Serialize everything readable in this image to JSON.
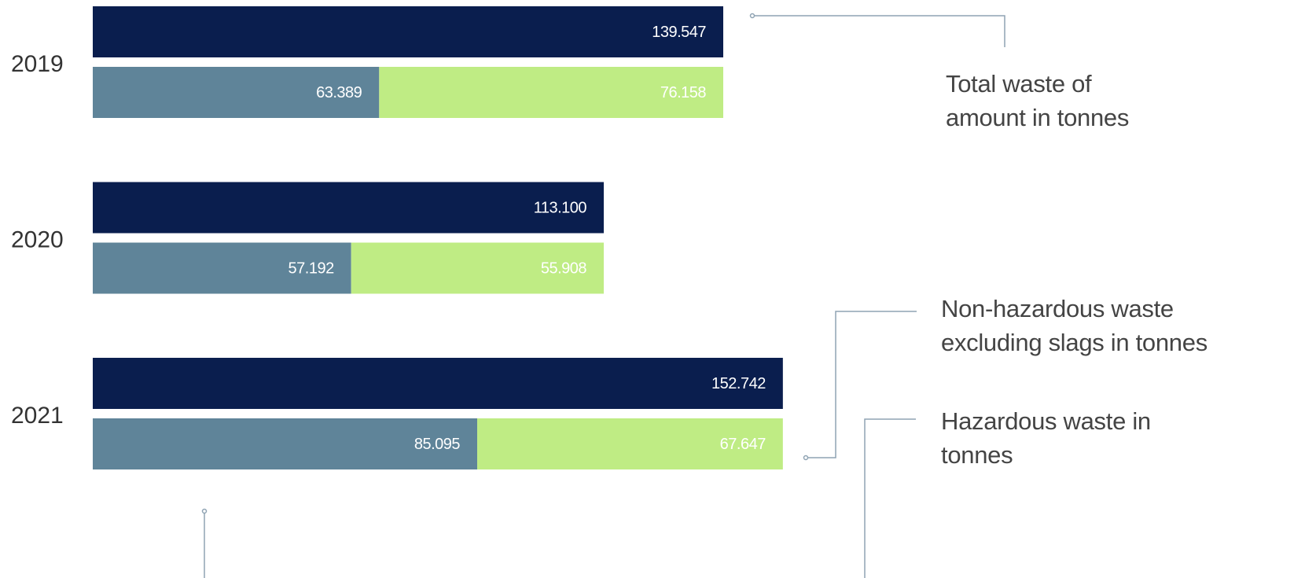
{
  "chart_data": {
    "type": "bar",
    "categories": [
      "2019",
      "2020",
      "2021"
    ],
    "series": [
      {
        "name": "Total waste of amount in tonnes",
        "color": "#0a1e4e",
        "values": [
          139547,
          113100,
          152742
        ],
        "value_labels": [
          "139.547",
          "113.100",
          "152.742"
        ]
      },
      {
        "name": "Hazardous waste in tonnes",
        "color": "#5f8499",
        "values": [
          63389,
          57192,
          85095
        ],
        "value_labels": [
          "63.389",
          "57.192",
          "85.095"
        ]
      },
      {
        "name": "Non-hazardous waste excluding slags in tonnes",
        "color": "#bfec84",
        "values": [
          76158,
          55908,
          67647
        ],
        "value_labels": [
          "76.158",
          "55.908",
          "67.647"
        ]
      }
    ]
  }
}
